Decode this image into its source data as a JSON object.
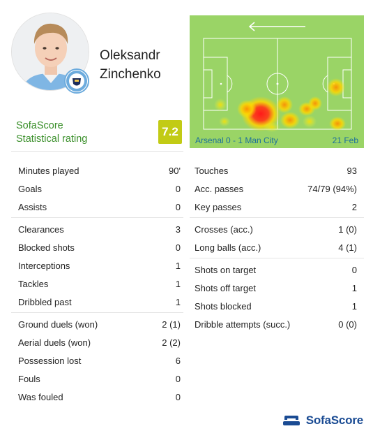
{
  "player": {
    "first_name": "Oleksandr",
    "last_name": "Zinchenko",
    "avatar_icon": "player-photo",
    "badge_icon": "manchester-city-crest"
  },
  "rating": {
    "source": "SofaScore",
    "label": "Statistical rating",
    "value": "7.2",
    "color": "#c2cb15"
  },
  "match": {
    "score_text": "Arsenal 0 - 1 Man City",
    "date": "21 Feb",
    "attack_direction_icon": "arrow-left-icon"
  },
  "stats_left": [
    [
      {
        "label": "Minutes played",
        "value": "90'"
      },
      {
        "label": "Goals",
        "value": "0"
      },
      {
        "label": "Assists",
        "value": "0"
      }
    ],
    [
      {
        "label": "Clearances",
        "value": "3"
      },
      {
        "label": "Blocked shots",
        "value": "0"
      },
      {
        "label": "Interceptions",
        "value": "1"
      },
      {
        "label": "Tackles",
        "value": "1"
      },
      {
        "label": "Dribbled past",
        "value": "1"
      }
    ],
    [
      {
        "label": "Ground duels (won)",
        "value": "2 (1)"
      },
      {
        "label": "Aerial duels (won)",
        "value": "2 (2)"
      },
      {
        "label": "Possession lost",
        "value": "6"
      },
      {
        "label": "Fouls",
        "value": "0"
      },
      {
        "label": "Was fouled",
        "value": "0"
      }
    ]
  ],
  "stats_right": [
    [
      {
        "label": "Touches",
        "value": "93"
      },
      {
        "label": "Acc. passes",
        "value": "74/79 (94%)"
      },
      {
        "label": "Key passes",
        "value": "2"
      }
    ],
    [
      {
        "label": "Crosses (acc.)",
        "value": "1 (0)"
      },
      {
        "label": "Long balls (acc.)",
        "value": "4 (1)"
      }
    ],
    [
      {
        "label": "Shots on target",
        "value": "0"
      },
      {
        "label": "Shots off target",
        "value": "1"
      },
      {
        "label": "Shots blocked",
        "value": "1"
      },
      {
        "label": "Dribble attempts (succ.)",
        "value": "0 (0)"
      }
    ]
  ],
  "footer": {
    "brand": "SofaScore",
    "brand_icon": "sofascore-logo-icon",
    "brand_color": "#1a4b93"
  }
}
